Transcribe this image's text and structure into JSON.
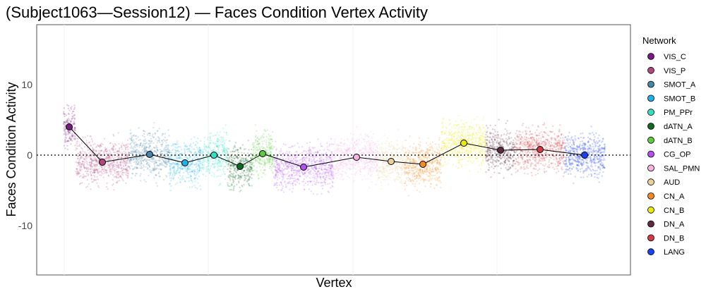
{
  "chart_data": {
    "type": "scatter",
    "title": "(Subject1063—Session12) — Faces Condition Vertex Activity",
    "xlabel": "Vertex",
    "ylabel": "Faces Condition Activity",
    "ylim": [
      -17,
      18.5
    ],
    "yticks": [
      -10,
      0,
      10
    ],
    "ytick_labels": [
      "-10",
      "0",
      "10"
    ],
    "reference_line": {
      "y": 0,
      "style": "dotted"
    },
    "grid": false,
    "legend": {
      "title": "Network",
      "placement": "right"
    },
    "series": [
      {
        "name": "VIS_C",
        "color": "#7a1a80",
        "mean": 4.0
      },
      {
        "name": "VIS_P",
        "color": "#b0487e",
        "mean": -1.0
      },
      {
        "name": "SMOT_A",
        "color": "#4786a8",
        "mean": 0.1
      },
      {
        "name": "SMOT_B",
        "color": "#1fb0ea",
        "mean": -1.1
      },
      {
        "name": "PM_PPr",
        "color": "#33e0c6",
        "mean": 0.0
      },
      {
        "name": "dATN_A",
        "color": "#0f6a22",
        "mean": -1.6
      },
      {
        "name": "dATN_B",
        "color": "#5ccc3c",
        "mean": 0.2
      },
      {
        "name": "CG_OP",
        "color": "#b250f2",
        "mean": -1.7
      },
      {
        "name": "SAL_PMN",
        "color": "#f8b2e2",
        "mean": -0.3
      },
      {
        "name": "AUD",
        "color": "#e8d09c",
        "mean": -0.9
      },
      {
        "name": "CN_A",
        "color": "#f28c22",
        "mean": -1.3
      },
      {
        "name": "CN_B",
        "color": "#e8e812",
        "mean": 1.7
      },
      {
        "name": "DN_A",
        "color": "#5e2a42",
        "mean": 0.7
      },
      {
        "name": "DN_B",
        "color": "#d23a46",
        "mean": 0.8
      },
      {
        "name": "LANG",
        "color": "#1a42f2",
        "mean": 0.0
      }
    ]
  }
}
